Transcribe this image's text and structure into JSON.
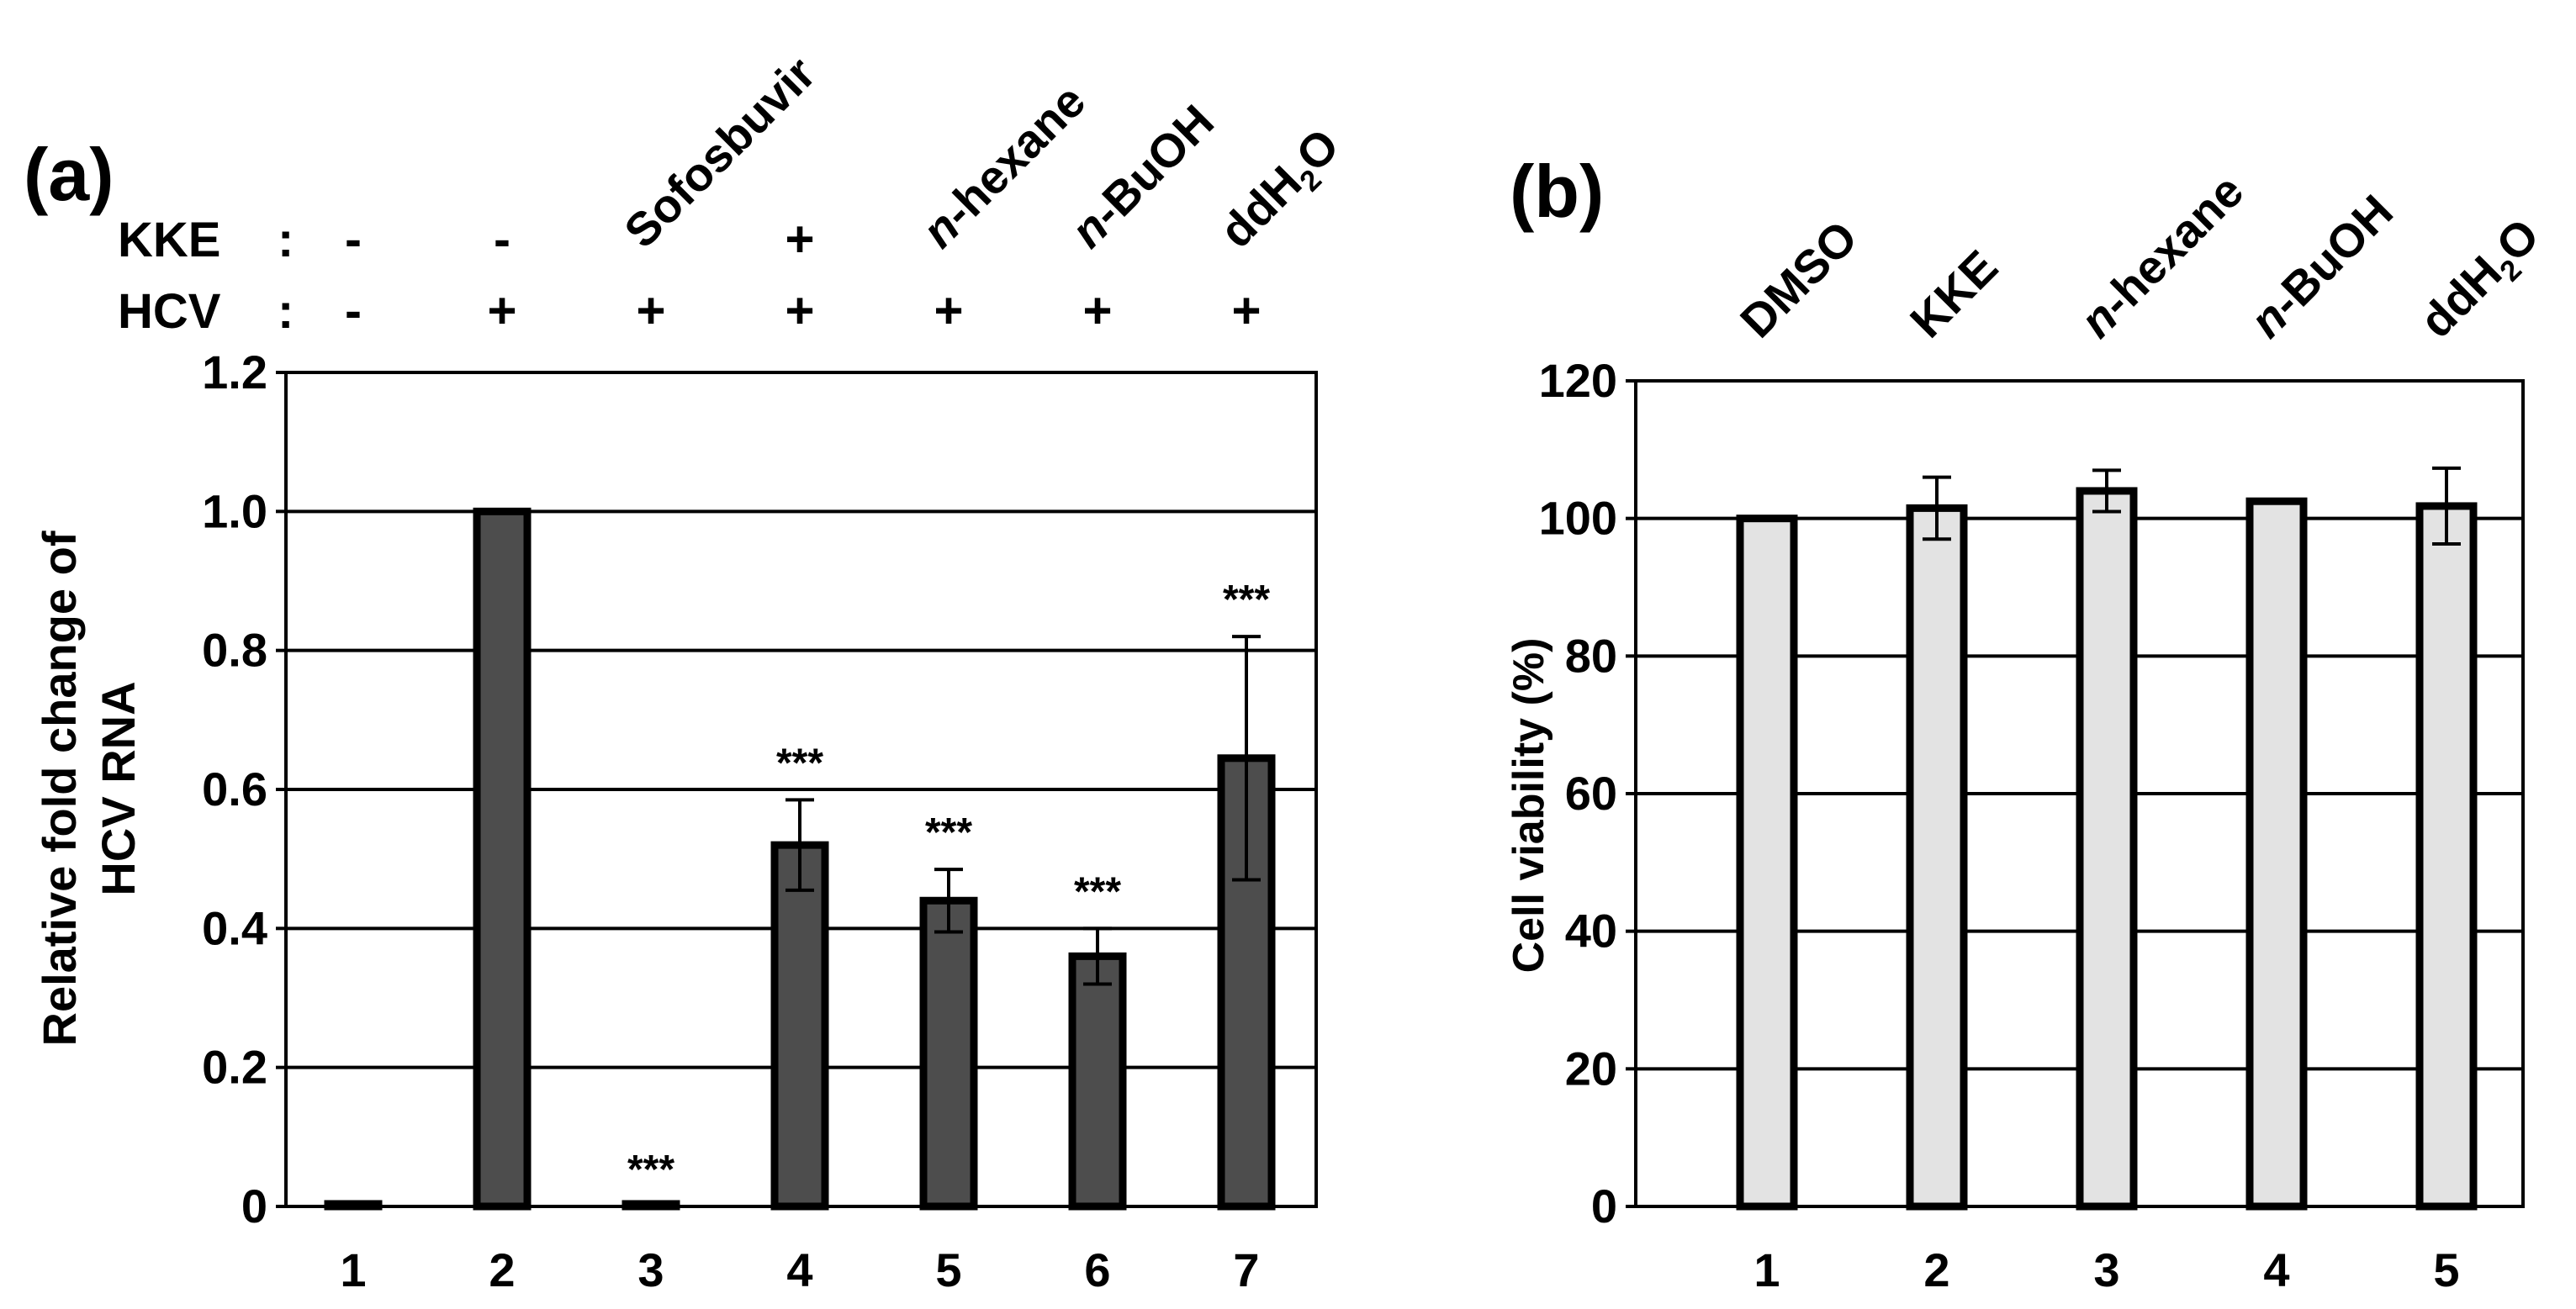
{
  "chart_data": [
    {
      "panel": "(a)",
      "type": "bar",
      "categories": [
        "1",
        "2",
        "3",
        "4",
        "5",
        "6",
        "7"
      ],
      "values": [
        0.0,
        1.0,
        0.0,
        0.52,
        0.44,
        0.36,
        0.645
      ],
      "errors": [
        0,
        0,
        0,
        0.065,
        0.045,
        0.04,
        0.175
      ],
      "significance": [
        "",
        "",
        "***",
        "***",
        "***",
        "***",
        "***"
      ],
      "ylabel_line1": "Relative fold change of",
      "ylabel_line2": "HCV RNA",
      "ylim": [
        0,
        1.2
      ],
      "yticks": [
        "0",
        "0.2",
        "0.4",
        "0.6",
        "0.8",
        "1.0",
        "1.2"
      ],
      "grid": true,
      "bar_color": "#4d4d4d",
      "condition_rows": [
        {
          "label": "KKE",
          "sep": ":",
          "values": [
            "-",
            "-",
            "",
            "+",
            "",
            "",
            ""
          ]
        },
        {
          "label": "HCV",
          "sep": ":",
          "values": [
            "-",
            "+",
            "+",
            "+",
            "+",
            "+",
            "+"
          ]
        }
      ],
      "treatments": [
        {
          "text": "Sofosbuvir",
          "italic": "",
          "base": "",
          "sub": "",
          "tail": ""
        },
        {
          "text": "",
          "italic": "n",
          "base": "-hexane",
          "sub": "",
          "tail": ""
        },
        {
          "text": "",
          "italic": "n",
          "base": "-BuOH",
          "sub": "",
          "tail": ""
        },
        {
          "text": "",
          "italic": "",
          "base": "ddH",
          "sub": "2",
          "tail": "O"
        }
      ]
    },
    {
      "panel": "(b)",
      "type": "bar",
      "categories": [
        "1",
        "2",
        "3",
        "4",
        "5"
      ],
      "values": [
        100,
        101.5,
        104,
        102.5,
        101.8
      ],
      "errors": [
        0,
        4.5,
        3,
        0,
        5.5
      ],
      "ylabel": "Cell viability (%)",
      "ylim": [
        0,
        120
      ],
      "yticks": [
        "0",
        "20",
        "40",
        "60",
        "80",
        "100",
        "120"
      ],
      "grid": true,
      "bar_color": "#e3e3e3",
      "treatments": [
        {
          "italic": "",
          "base": "DMSO",
          "sub": "",
          "tail": ""
        },
        {
          "italic": "",
          "base": "KKE",
          "sub": "",
          "tail": ""
        },
        {
          "italic": "n",
          "base": "-hexane",
          "sub": "",
          "tail": ""
        },
        {
          "italic": "n",
          "base": "-BuOH",
          "sub": "",
          "tail": ""
        },
        {
          "italic": "",
          "base": "ddH",
          "sub": "2",
          "tail": "O"
        }
      ]
    }
  ]
}
